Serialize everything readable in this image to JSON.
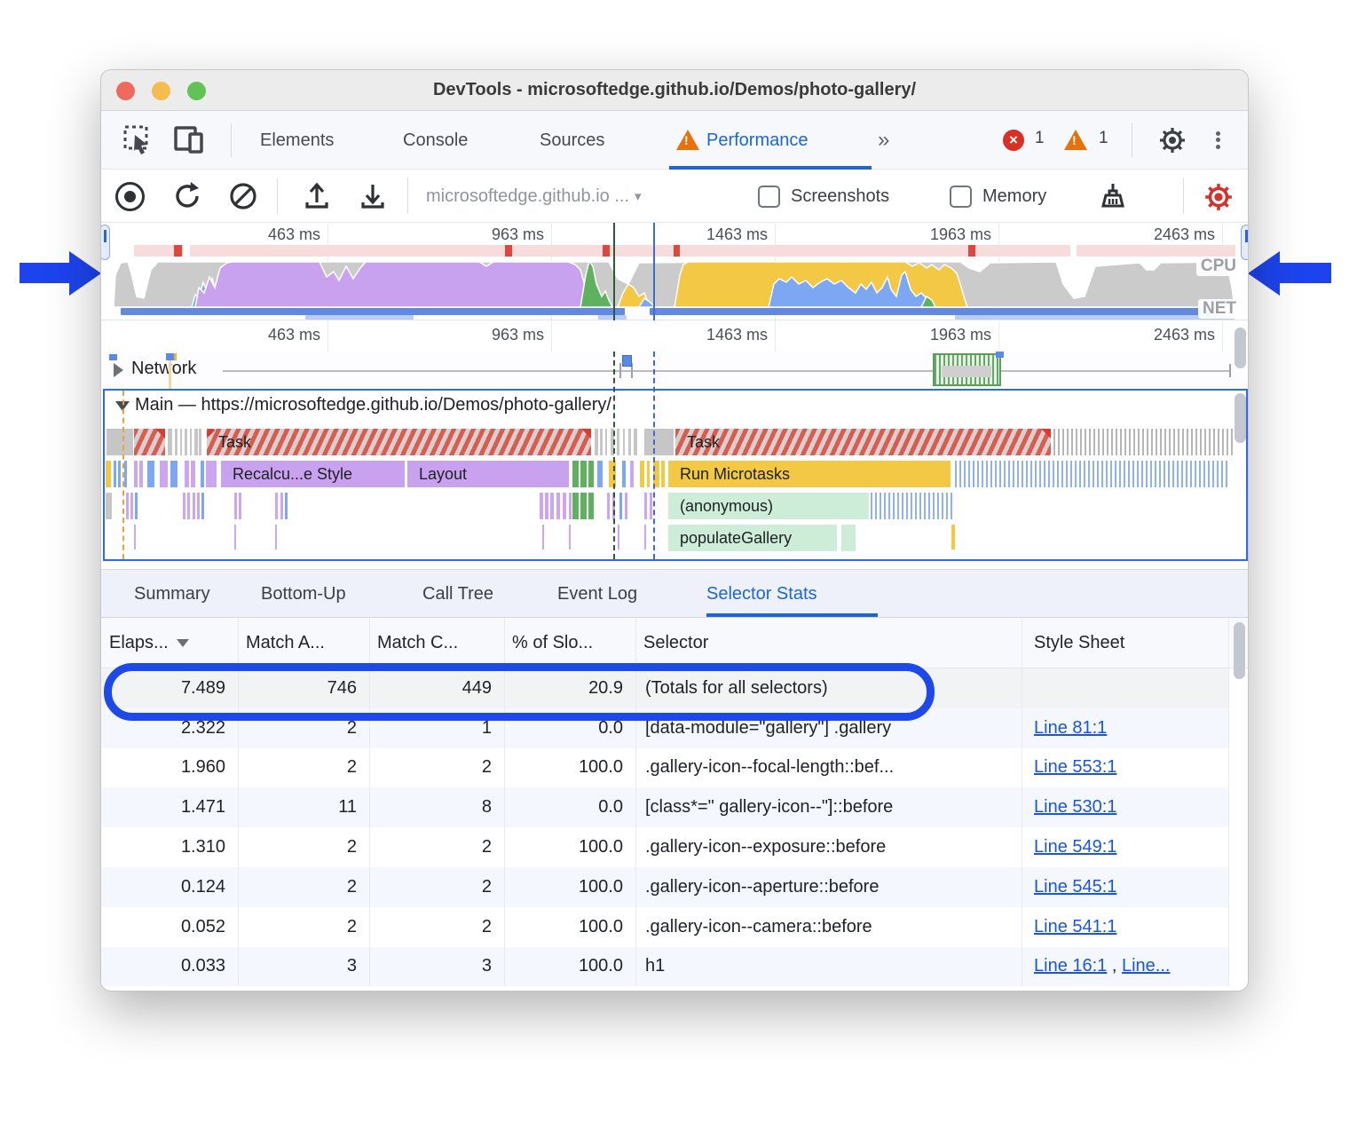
{
  "window": {
    "title": "DevTools - microsoftedge.github.io/Demos/photo-gallery/"
  },
  "devtools_tabs": {
    "items": [
      {
        "label": "Elements"
      },
      {
        "label": "Console"
      },
      {
        "label": "Sources"
      },
      {
        "label": "Performance"
      }
    ],
    "active": "Performance",
    "more_chevron": "»",
    "error_count": "1",
    "warning_count": "1"
  },
  "toolbar": {
    "history_select": "microsoftedge.github.io ...",
    "select_caret": "▾",
    "screenshots_label": "Screenshots",
    "memory_label": "Memory"
  },
  "overview": {
    "ruler": [
      "463 ms",
      "963 ms",
      "1463 ms",
      "1963 ms",
      "2463 ms"
    ],
    "cpu_label": "CPU",
    "net_label": "NET"
  },
  "tracks": {
    "ruler": [
      "463 ms",
      "963 ms",
      "1463 ms",
      "1963 ms",
      "2463 ms"
    ],
    "network_label": "Network",
    "main_label": "Main — https://microsoftedge.github.io/Demos/photo-gallery/",
    "flame": {
      "task_left": "Task",
      "task_right": "Task",
      "recalc_style": "Recalcu...e Style",
      "layout": "Layout",
      "run_microtasks": "Run Microtasks",
      "anonymous": "(anonymous)",
      "populate_gallery": "populateGallery"
    }
  },
  "bottom_tabs": {
    "items": [
      {
        "label": "Summary"
      },
      {
        "label": "Bottom-Up"
      },
      {
        "label": "Call Tree"
      },
      {
        "label": "Event Log"
      },
      {
        "label": "Selector Stats"
      }
    ],
    "active": "Selector Stats"
  },
  "selector_stats": {
    "headers": {
      "elapsed": "Elaps...",
      "match_attempts": "Match A...",
      "match_count": "Match C...",
      "slow_pct": "% of Slo...",
      "selector": "Selector",
      "style_sheet": "Style Sheet"
    },
    "rows": [
      {
        "elapsed": "7.489",
        "match_attempts": "746",
        "match_count": "449",
        "slow_pct": "20.9",
        "selector": "(Totals for all selectors)",
        "sheet1": "",
        "sheet_sep": "",
        "sheet2": ""
      },
      {
        "elapsed": "2.322",
        "match_attempts": "2",
        "match_count": "1",
        "slow_pct": "0.0",
        "selector": "[data-module=\"gallery\"] .gallery",
        "sheet1": "Line 81:1",
        "sheet_sep": "",
        "sheet2": ""
      },
      {
        "elapsed": "1.960",
        "match_attempts": "2",
        "match_count": "2",
        "slow_pct": "100.0",
        "selector": ".gallery-icon--focal-length::bef...",
        "sheet1": "Line 553:1",
        "sheet_sep": "",
        "sheet2": ""
      },
      {
        "elapsed": "1.471",
        "match_attempts": "11",
        "match_count": "8",
        "slow_pct": "0.0",
        "selector": "[class*=\" gallery-icon--\"]::before",
        "sheet1": "Line 530:1",
        "sheet_sep": "",
        "sheet2": ""
      },
      {
        "elapsed": "1.310",
        "match_attempts": "2",
        "match_count": "2",
        "slow_pct": "100.0",
        "selector": ".gallery-icon--exposure::before",
        "sheet1": "Line 549:1",
        "sheet_sep": "",
        "sheet2": ""
      },
      {
        "elapsed": "0.124",
        "match_attempts": "2",
        "match_count": "2",
        "slow_pct": "100.0",
        "selector": ".gallery-icon--aperture::before",
        "sheet1": "Line 545:1",
        "sheet_sep": "",
        "sheet2": ""
      },
      {
        "elapsed": "0.052",
        "match_attempts": "2",
        "match_count": "2",
        "slow_pct": "100.0",
        "selector": ".gallery-icon--camera::before",
        "sheet1": "Line 541:1",
        "sheet_sep": "",
        "sheet2": ""
      },
      {
        "elapsed": "0.033",
        "match_attempts": "3",
        "match_count": "3",
        "slow_pct": "100.0",
        "selector": "h1",
        "sheet1": "Line 16:1",
        "sheet_sep": " , ",
        "sheet2": "Line..."
      }
    ]
  },
  "colors": {
    "accent_blue": "#1a66d8",
    "annotation_blue": "#1d43ee",
    "error_red": "#d93025",
    "warning_orange": "#e8710a",
    "link_blue": "#1a56db",
    "cpu_scripting_yellow": "#f2c845",
    "cpu_rendering_purple": "#c9a2ef",
    "cpu_painting_green": "#5fb05f",
    "cpu_loading_blue": "#7ca7f3",
    "cpu_system_gray": "#c9c9c9",
    "long_task_red": "#df392d"
  }
}
